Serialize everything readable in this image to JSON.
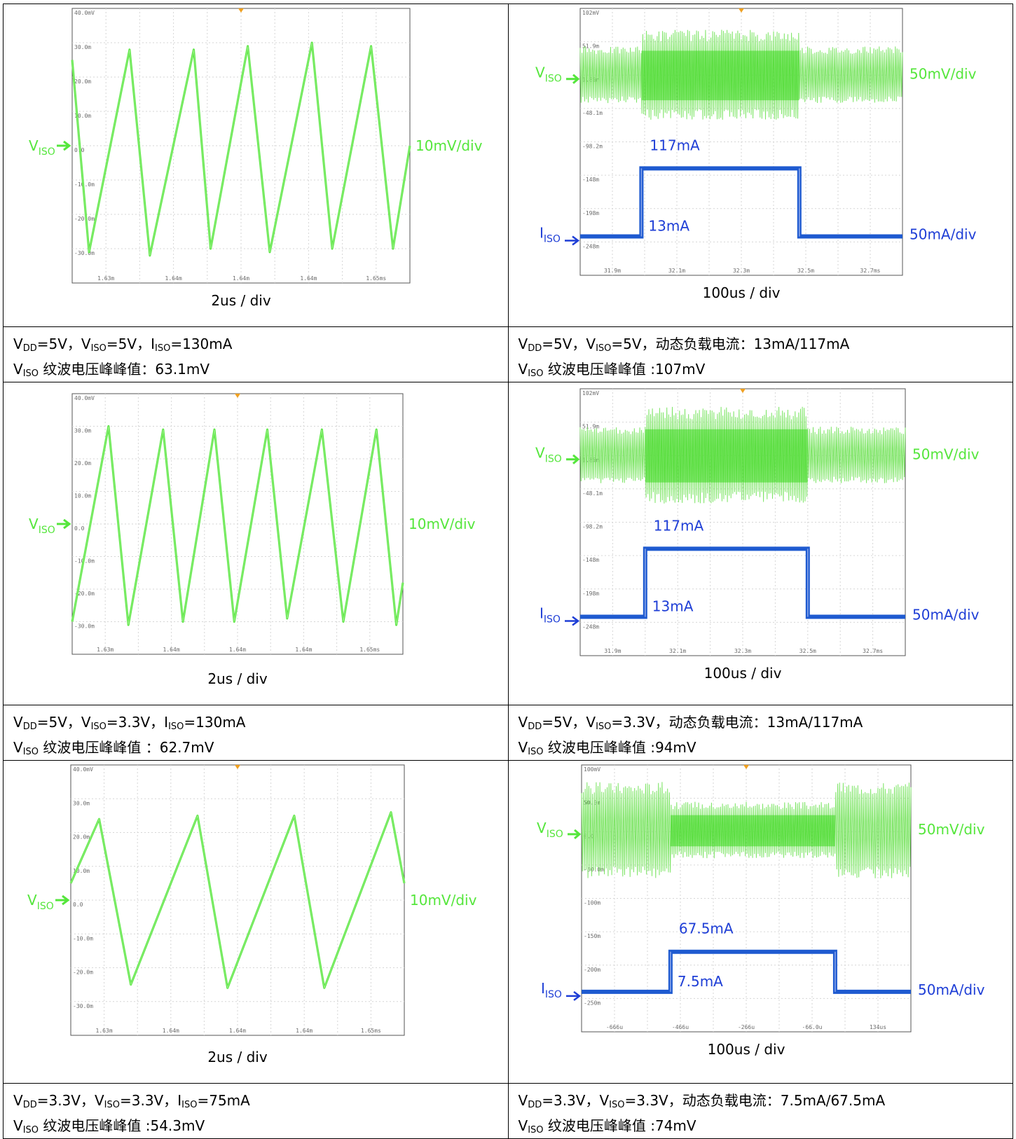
{
  "panels": [
    {
      "id": "p1",
      "type": "ripple",
      "yticks": [
        "40.0mV",
        "30.0m",
        "20.0m",
        "10.0m",
        "0.0",
        "-10.0m",
        "-20.0m",
        "-30.0m"
      ],
      "xticks": [
        "1.63m",
        "1.64m",
        "1.64m",
        "1.64m",
        "1.65ms"
      ],
      "ylim": [
        -40,
        40
      ],
      "time_div": "2us / div",
      "v_label": "V",
      "v_label_sub": "ISO",
      "v_scale": "10mV/div",
      "series": [
        {
          "name": "VISO",
          "color": "#55e63c",
          "points": [
            [
              0,
              25
            ],
            [
              0.5,
              -31
            ],
            [
              1.7,
              28
            ],
            [
              2.3,
              -32
            ],
            [
              3.6,
              28
            ],
            [
              4.1,
              -30
            ],
            [
              5.2,
              29
            ],
            [
              5.85,
              -31
            ],
            [
              7.1,
              30
            ],
            [
              7.7,
              -30
            ],
            [
              8.85,
              29
            ],
            [
              9.5,
              -30
            ],
            [
              10,
              0
            ]
          ]
        }
      ]
    },
    {
      "id": "p2",
      "type": "load",
      "yticks": [
        "102mV",
        "51.9m",
        "1.85m",
        "-48.1m",
        "-98.2m",
        "-148m",
        "-198m",
        "-248m"
      ],
      "xticks": [
        "31.9m",
        "32.1m",
        "32.3m",
        "32.5m",
        "32.7ms"
      ],
      "ylim": [
        -298.3,
        102
      ],
      "time_div": "100us / div",
      "v_label": "V",
      "v_label_sub": "ISO",
      "v_scale": "50mV/div",
      "i_label": "I",
      "i_label_sub": "ISO",
      "i_scale": "50mA/div",
      "current_high": "117mA",
      "current_low": "13mA",
      "step_x": [
        1.9,
        6.8
      ],
      "ripple_edge": [
        -40,
        45
      ],
      "ripple_mid": [
        -65,
        70
      ],
      "i_levels": [
        -240,
        -138
      ],
      "colors": {
        "v": "#55e63c",
        "i": "#1e5ad0"
      }
    },
    {
      "id": "p3",
      "type": "ripple",
      "yticks": [
        "40.0mV",
        "30.0m",
        "20.0m",
        "10.0m",
        "0.0",
        "-10.0m",
        "-20.0m",
        "-30.0m"
      ],
      "xticks": [
        "1.63m",
        "1.64m",
        "1.64m",
        "1.64m",
        "1.65ms"
      ],
      "ylim": [
        -40,
        40
      ],
      "time_div": "2us / div",
      "v_label": "V",
      "v_label_sub": "ISO",
      "v_scale": "10mV/div",
      "series": [
        {
          "name": "VISO",
          "color": "#55e63c",
          "points": [
            [
              0,
              -30
            ],
            [
              1.1,
              30
            ],
            [
              1.7,
              -31
            ],
            [
              2.75,
              29
            ],
            [
              3.35,
              -30
            ],
            [
              4.3,
              29
            ],
            [
              4.9,
              -30
            ],
            [
              5.9,
              29
            ],
            [
              6.5,
              -29
            ],
            [
              7.55,
              29
            ],
            [
              8.2,
              -30
            ],
            [
              9.2,
              29
            ],
            [
              9.8,
              -31
            ],
            [
              10,
              -18
            ]
          ]
        }
      ]
    },
    {
      "id": "p4",
      "type": "load",
      "yticks": [
        "102mV",
        "51.9m",
        "1.85m",
        "-48.1m",
        "-98.2m",
        "-148m",
        "-198m",
        "-248m"
      ],
      "xticks": [
        "31.9m",
        "32.1m",
        "32.3m",
        "32.5m",
        "32.7ms"
      ],
      "ylim": [
        -298.3,
        102
      ],
      "time_div": "100us / div",
      "v_label": "V",
      "v_label_sub": "ISO",
      "v_scale": "50mV/div",
      "i_label": "I",
      "i_label_sub": "ISO",
      "i_scale": "50mA/div",
      "current_high": "117mA",
      "current_low": "13mA",
      "step_x": [
        2,
        7
      ],
      "ripple_edge": [
        -40,
        45
      ],
      "ripple_mid": [
        -70,
        75
      ],
      "i_levels": [
        -240,
        -138
      ],
      "colors": {
        "v": "#55e63c",
        "i": "#1e5ad0"
      }
    },
    {
      "id": "p5",
      "type": "ripple",
      "yticks": [
        "40.0mV",
        "30.0m",
        "20.0m",
        "10.0m",
        "0.0",
        "-10.0m",
        "-20.0m",
        "-30.0m"
      ],
      "xticks": [
        "1.63m",
        "1.64m",
        "1.64m",
        "1.64m",
        "1.65ms"
      ],
      "ylim": [
        -40,
        40
      ],
      "time_div": "2us / div",
      "v_label": "V",
      "v_label_sub": "ISO",
      "v_scale": "10mV/div",
      "series": [
        {
          "name": "VISO",
          "color": "#55e63c",
          "points": [
            [
              0,
              5
            ],
            [
              0.85,
              24
            ],
            [
              1.8,
              -25
            ],
            [
              3.8,
              25
            ],
            [
              4.7,
              -26
            ],
            [
              6.7,
              25
            ],
            [
              7.6,
              -26
            ],
            [
              9.6,
              26
            ],
            [
              10,
              5
            ]
          ]
        }
      ]
    },
    {
      "id": "p6",
      "type": "load",
      "yticks": [
        "100mV",
        "50.0m",
        "0.0",
        "-50.0m",
        "-100m",
        "-150m",
        "-200m",
        "-250m"
      ],
      "xticks": [
        "-666u",
        "-466u",
        "-266u",
        "-66.0u",
        "134us"
      ],
      "ylim": [
        -300,
        100
      ],
      "time_div": "100us / div",
      "v_label": "V",
      "v_label_sub": "ISO",
      "v_scale": "50mV/div",
      "i_label": "I",
      "i_label_sub": "ISO",
      "i_scale": "50mA/div",
      "current_high": "67.5mA",
      "current_low": "7.5mA",
      "step_x": [
        2.7,
        7.7
      ],
      "ripple_edge": [
        -70,
        75
      ],
      "ripple_mid": [
        -40,
        45
      ],
      "i_levels": [
        -240,
        -180
      ],
      "colors": {
        "v": "#55e63c",
        "i": "#1e5ad0"
      }
    }
  ],
  "captions": [
    {
      "l1": {
        "a": "V",
        "a_sub": "DD",
        "b": "=5V，",
        "c": "V",
        "c_sub": "ISO",
        "d": "=5V，",
        "e": "I",
        "e_sub": "ISO",
        "f": "=130mA"
      },
      "l2": {
        "a": "V",
        "a_sub": "ISO",
        "b": " 纹波电压峰峰值：63.1mV"
      }
    },
    {
      "l1": {
        "a": "V",
        "a_sub": "DD",
        "b": "=5V，",
        "c": "V",
        "c_sub": "ISO",
        "d": "=5V，",
        "e": "动态负载电流：13mA/117mA",
        "e_sub": "",
        "f": ""
      },
      "l2": {
        "a": "V",
        "a_sub": "ISO",
        "b": " 纹波电压峰峰值 :107mV"
      }
    },
    {
      "l1": {
        "a": "V",
        "a_sub": "DD",
        "b": "=5V，",
        "c": "V",
        "c_sub": "ISO",
        "d": "=3.3V，",
        "e": "I",
        "e_sub": "ISO",
        "f": "=130mA"
      },
      "l2": {
        "a": "V",
        "a_sub": "ISO",
        "b": " 纹波电压峰峰值 ：62.7mV"
      }
    },
    {
      "l1": {
        "a": "V",
        "a_sub": "DD",
        "b": "=5V，",
        "c": "V",
        "c_sub": "ISO",
        "d": "=3.3V，",
        "e": "动态负载电流：13mA/117mA",
        "e_sub": "",
        "f": ""
      },
      "l2": {
        "a": "V",
        "a_sub": "ISO",
        "b": " 纹波电压峰峰值 :94mV"
      }
    },
    {
      "l1": {
        "a": "V",
        "a_sub": "DD",
        "b": "=3.3V，",
        "c": "V",
        "c_sub": "ISO",
        "d": "=3.3V，",
        "e": "I",
        "e_sub": "ISO",
        "f": "=75mA"
      },
      "l2": {
        "a": "V",
        "a_sub": "ISO",
        "b": " 纹波电压峰峰值 :54.3mV"
      }
    },
    {
      "l1": {
        "a": "V",
        "a_sub": "DD",
        "b": "=3.3V，",
        "c": "V",
        "c_sub": "ISO",
        "d": "=3.3V，",
        "e": "动态负载电流：7.5mA/67.5mA",
        "e_sub": "",
        "f": ""
      },
      "l2": {
        "a": "V",
        "a_sub": "ISO",
        "b": " 纹波电压峰峰值 :74mV"
      }
    }
  ]
}
